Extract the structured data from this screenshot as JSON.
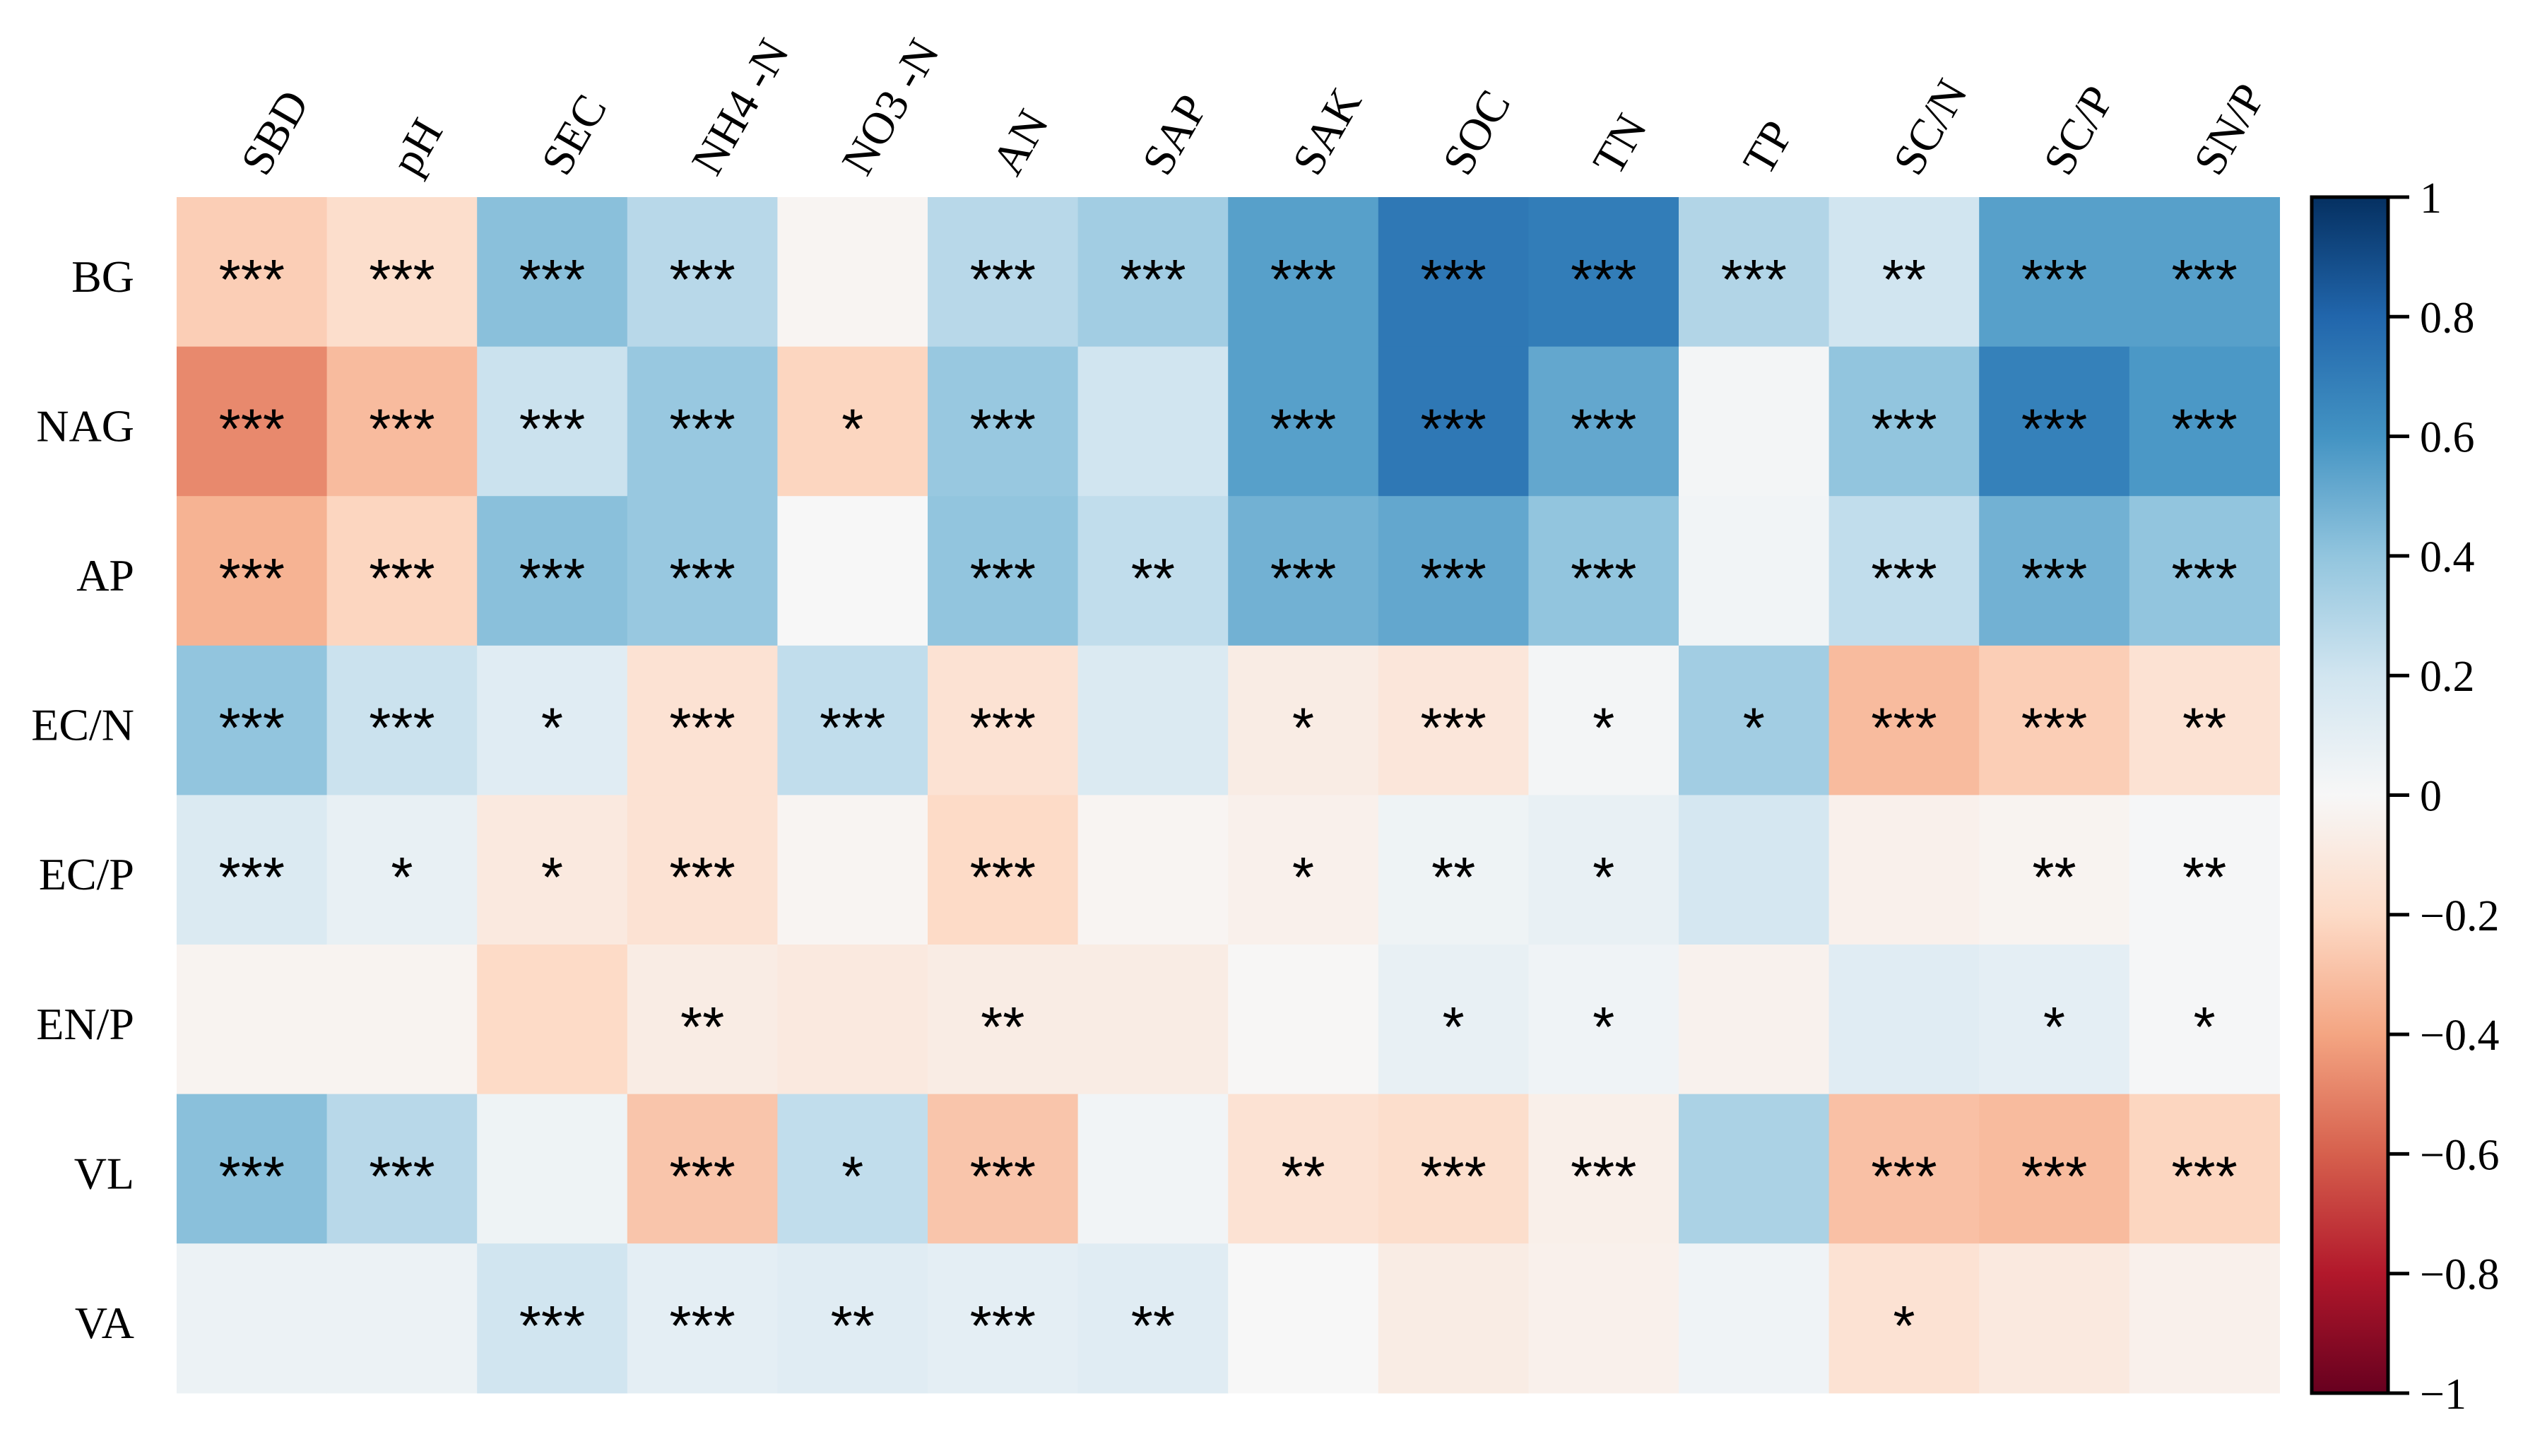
{
  "chart_data": {
    "type": "heatmap",
    "title": "",
    "columns": [
      "SBD",
      "pH",
      "SEC",
      "NH4 -N",
      "NO3 -N",
      "AN",
      "SAP",
      "SAK",
      "SOC",
      "TN",
      "TP",
      "SC/N",
      "SC/P",
      "SN/P"
    ],
    "rows": [
      "BG",
      "NAG",
      "AP",
      "EC/N",
      "EC/P",
      "EN/P",
      "VL",
      "VA"
    ],
    "values": [
      [
        -0.25,
        -0.18,
        0.42,
        0.28,
        -0.02,
        0.28,
        0.35,
        0.55,
        0.72,
        0.7,
        0.3,
        0.2,
        0.55,
        0.55
      ],
      [
        -0.48,
        -0.32,
        0.22,
        0.38,
        -0.22,
        0.38,
        0.2,
        0.55,
        0.72,
        0.52,
        0.02,
        0.4,
        0.68,
        0.58
      ],
      [
        -0.35,
        -0.22,
        0.42,
        0.38,
        0.0,
        0.4,
        0.25,
        0.48,
        0.52,
        0.4,
        0.03,
        0.25,
        0.48,
        0.4
      ],
      [
        0.4,
        0.22,
        0.12,
        -0.15,
        0.25,
        -0.15,
        0.15,
        -0.08,
        -0.12,
        0.02,
        0.35,
        -0.32,
        -0.25,
        -0.15
      ],
      [
        0.15,
        0.08,
        -0.1,
        -0.15,
        -0.02,
        -0.2,
        -0.02,
        -0.05,
        0.05,
        0.08,
        0.18,
        -0.05,
        -0.03,
        0.01
      ],
      [
        -0.03,
        -0.03,
        -0.2,
        -0.08,
        -0.1,
        -0.08,
        -0.08,
        -0.01,
        0.08,
        0.04,
        -0.04,
        0.12,
        0.1,
        0.01
      ],
      [
        0.42,
        0.28,
        0.05,
        -0.28,
        0.25,
        -0.28,
        0.03,
        -0.15,
        -0.18,
        -0.06,
        0.32,
        -0.3,
        -0.32,
        -0.22
      ],
      [
        0.06,
        0.06,
        0.2,
        0.1,
        0.12,
        0.1,
        0.12,
        0.0,
        -0.08,
        -0.05,
        0.04,
        -0.15,
        -0.1,
        -0.05
      ]
    ],
    "significance": [
      [
        "***",
        "***",
        "***",
        "***",
        "",
        "***",
        "***",
        "***",
        "***",
        "***",
        "***",
        "**",
        "***",
        "***"
      ],
      [
        "***",
        "***",
        "***",
        "***",
        "*",
        "***",
        "",
        "***",
        "***",
        "***",
        "",
        "***",
        "***",
        "***"
      ],
      [
        "***",
        "***",
        "***",
        "***",
        "",
        "***",
        "**",
        "***",
        "***",
        "***",
        "",
        "***",
        "***",
        "***"
      ],
      [
        "***",
        "***",
        "*",
        "***",
        "***",
        "***",
        "",
        "*",
        "***",
        "*",
        "*",
        "***",
        "***",
        "**"
      ],
      [
        "***",
        "*",
        "*",
        "***",
        "",
        "***",
        "",
        "*",
        "**",
        "*",
        "",
        "",
        "**",
        "**"
      ],
      [
        "",
        "",
        "",
        "**",
        "",
        "**",
        "",
        "",
        "*",
        "*",
        "",
        "",
        "*",
        "*"
      ],
      [
        "***",
        "***",
        "",
        "***",
        "*",
        "***",
        "",
        "**",
        "***",
        "***",
        "",
        "***",
        "***",
        "***"
      ],
      [
        "",
        "",
        "***",
        "***",
        "**",
        "***",
        "**",
        "",
        "",
        "",
        "",
        "*",
        "",
        ""
      ]
    ],
    "colorbar": {
      "range": [
        -1,
        1
      ],
      "ticks": [
        1,
        0.8,
        0.6,
        0.4,
        0.2,
        0,
        -0.2,
        -0.4,
        -0.6,
        -0.8,
        -1
      ],
      "tick_labels": [
        "1",
        "0.8",
        "0.6",
        "0.4",
        "0.2",
        "0",
        "−0.2",
        "−0.4",
        "−0.6",
        "−0.8",
        "−1"
      ],
      "colormap": "RdBu",
      "stops": [
        {
          "v": -1.0,
          "color": "#67001f"
        },
        {
          "v": -0.8,
          "color": "#b2182b"
        },
        {
          "v": -0.6,
          "color": "#d6604d"
        },
        {
          "v": -0.4,
          "color": "#f4a582"
        },
        {
          "v": -0.2,
          "color": "#fddbc7"
        },
        {
          "v": 0.0,
          "color": "#f7f7f7"
        },
        {
          "v": 0.2,
          "color": "#d1e5f0"
        },
        {
          "v": 0.4,
          "color": "#92c5de"
        },
        {
          "v": 0.6,
          "color": "#4393c3"
        },
        {
          "v": 0.8,
          "color": "#2166ac"
        },
        {
          "v": 1.0,
          "color": "#053061"
        }
      ]
    }
  }
}
